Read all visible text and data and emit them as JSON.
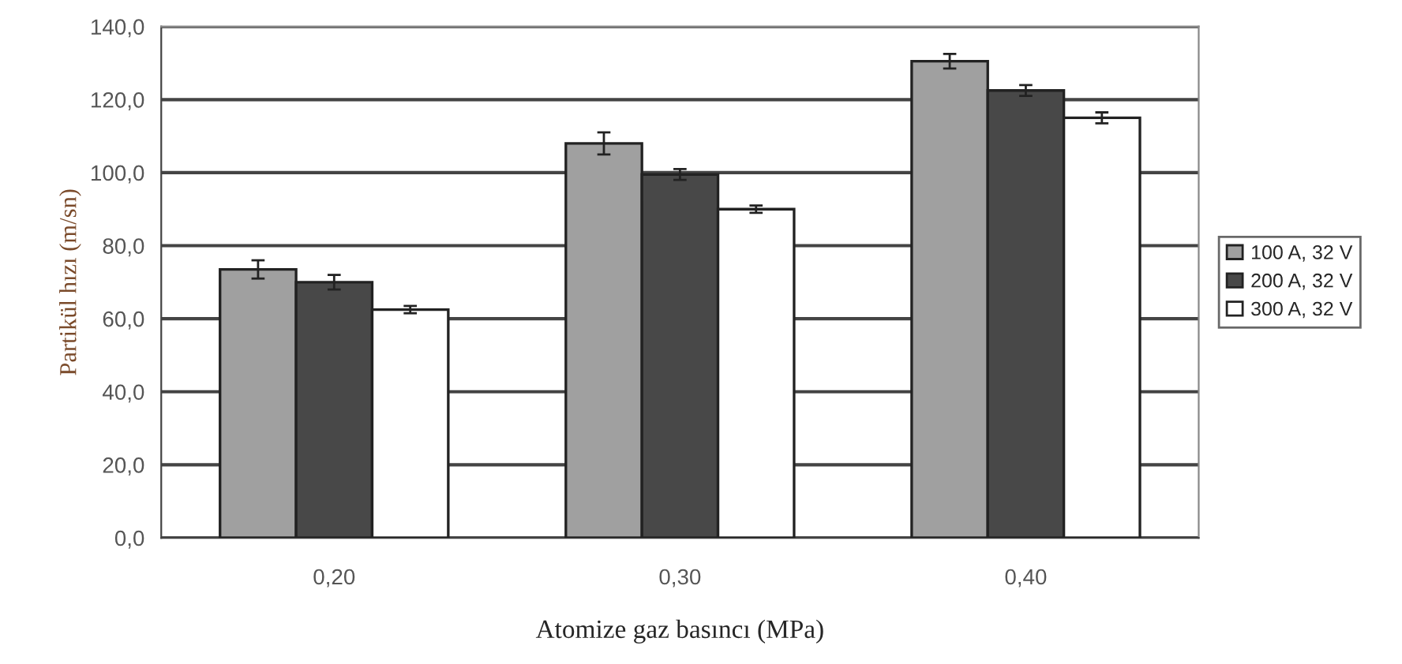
{
  "chart_data": {
    "type": "bar",
    "xlabel": "Atomize gaz basıncı (MPa)",
    "ylabel": "Partikül hızı (m/sn)",
    "categories": [
      "0,20",
      "0,30",
      "0,40"
    ],
    "series": [
      {
        "name": "100 A, 32 V",
        "color": "#a0a0a0",
        "values": [
          73.5,
          108,
          130.5
        ],
        "errors": [
          2.5,
          3,
          2
        ]
      },
      {
        "name": "200 A, 32 V",
        "color": "#484848",
        "values": [
          70,
          99.5,
          122.5
        ],
        "errors": [
          2,
          1.5,
          1.5
        ]
      },
      {
        "name": "300 A, 32 V",
        "color": "#ffffff",
        "values": [
          62.5,
          90,
          115
        ],
        "errors": [
          1,
          1,
          1.5
        ]
      }
    ],
    "ylim": [
      0,
      140
    ],
    "yticks": [
      {
        "value": 0,
        "label": "0,0"
      },
      {
        "value": 20,
        "label": "20,0"
      },
      {
        "value": 40,
        "label": "40,0"
      },
      {
        "value": 60,
        "label": "60,0"
      },
      {
        "value": 80,
        "label": "80,0"
      },
      {
        "value": 100,
        "label": "100,0"
      },
      {
        "value": 120,
        "label": "120,0"
      },
      {
        "value": 140,
        "label": "140,0"
      }
    ],
    "grid": "y",
    "legend": "right"
  }
}
